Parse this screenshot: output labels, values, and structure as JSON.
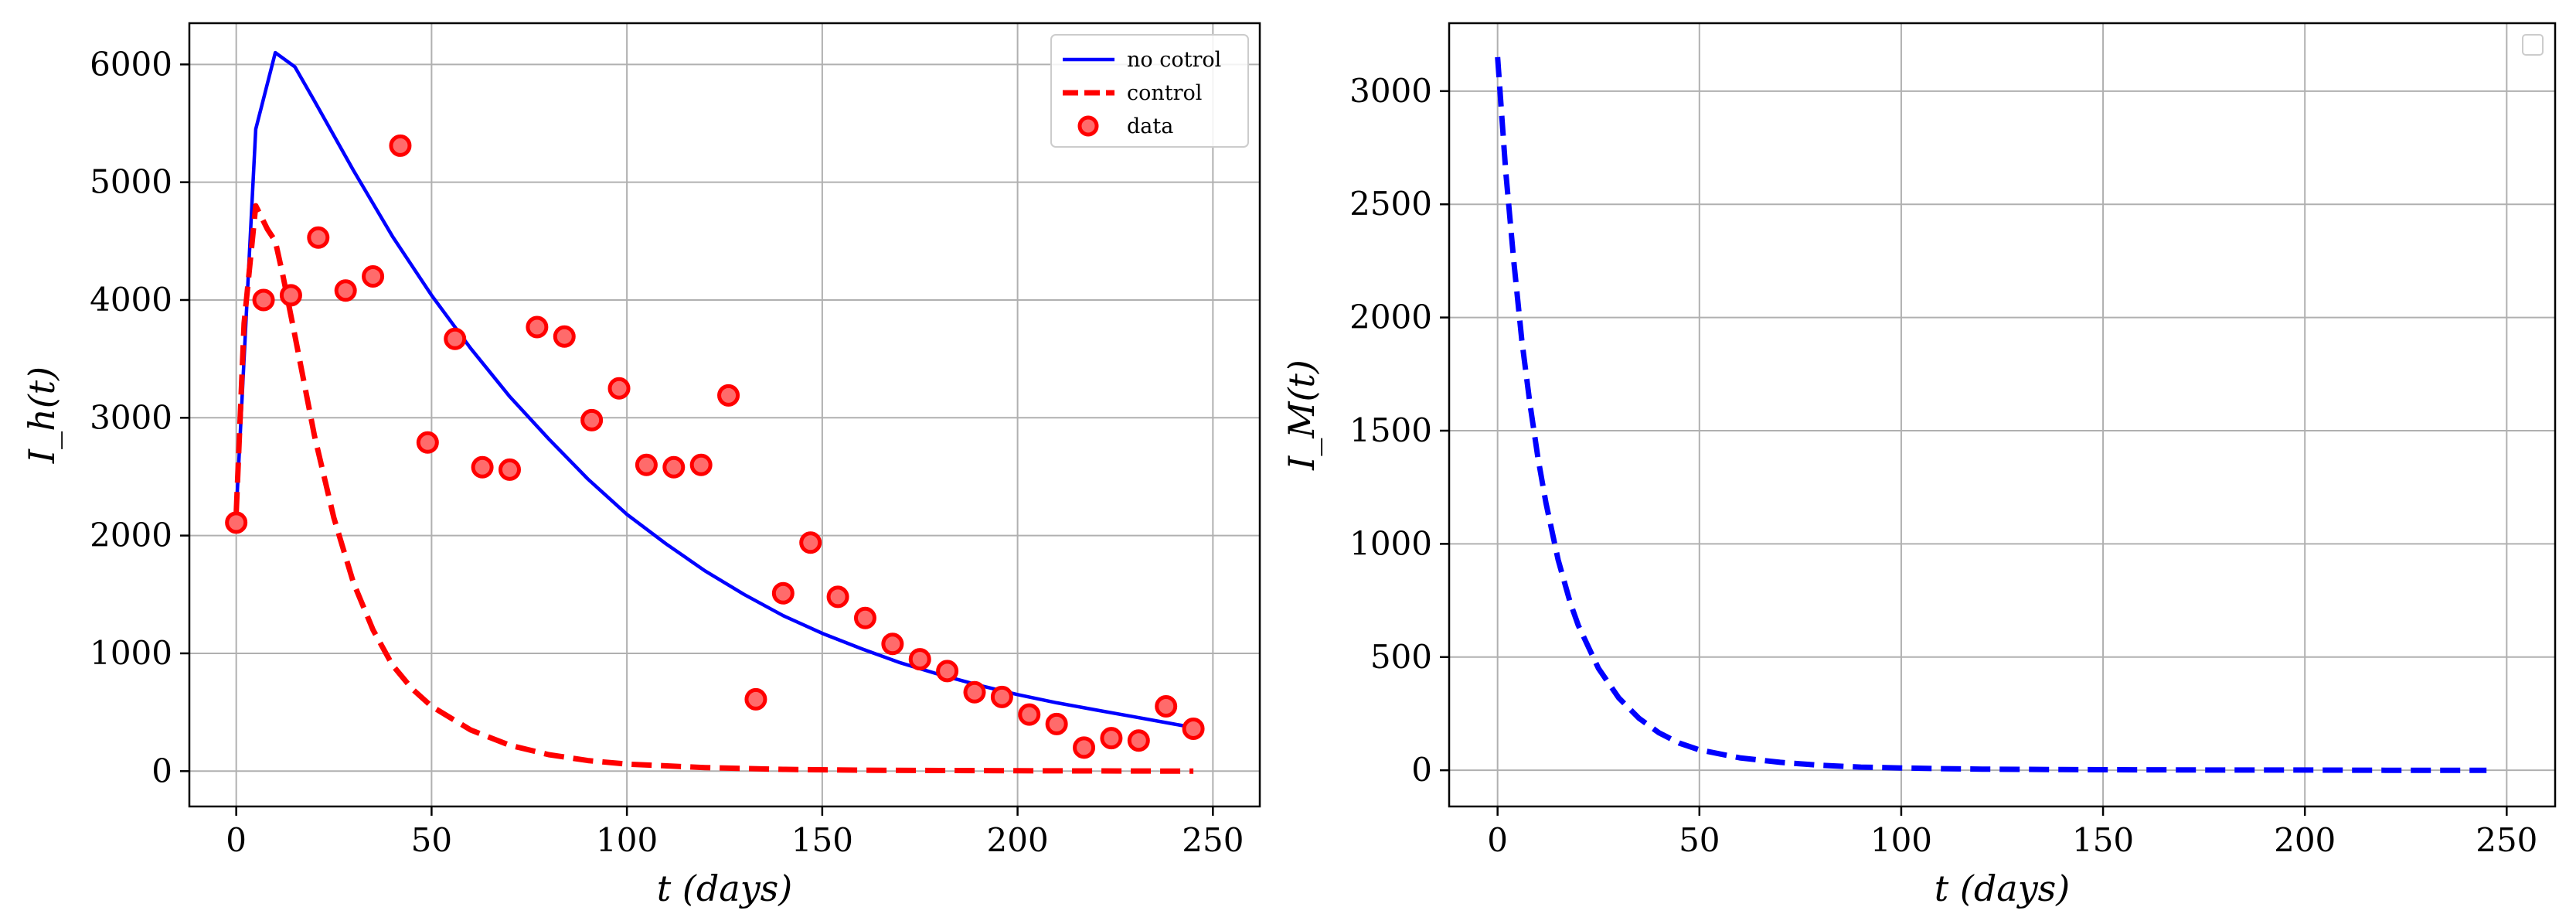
{
  "chart_data": [
    {
      "type": "line",
      "panel": "left",
      "title": "",
      "xlabel": "t (days)",
      "ylabel": "I_h(t)",
      "xlim": [
        -12,
        262
      ],
      "ylim": [
        -300,
        6350
      ],
      "xticks": [
        0,
        50,
        100,
        150,
        200,
        250
      ],
      "yticks": [
        0,
        1000,
        2000,
        3000,
        4000,
        5000,
        6000
      ],
      "grid": true,
      "legend_position": "top-right",
      "legend": [
        "no cotrol",
        "control",
        "data"
      ],
      "series": [
        {
          "name": "no cotrol",
          "style": "solid",
          "color": "#0000ff",
          "x": [
            0,
            5,
            10,
            15,
            20,
            30,
            40,
            50,
            60,
            70,
            80,
            90,
            100,
            110,
            120,
            130,
            140,
            150,
            160,
            170,
            180,
            190,
            200,
            210,
            220,
            230,
            240,
            245
          ],
          "y": [
            2200,
            5450,
            6100,
            5980,
            5690,
            5100,
            4540,
            4040,
            3590,
            3180,
            2820,
            2480,
            2180,
            1930,
            1700,
            1500,
            1320,
            1170,
            1040,
            920,
            820,
            730,
            650,
            580,
            520,
            460,
            400,
            370
          ]
        },
        {
          "name": "control",
          "style": "dashed",
          "color": "#ff0000",
          "x": [
            0,
            2,
            5,
            8,
            10,
            12,
            15,
            20,
            25,
            30,
            35,
            40,
            45,
            50,
            60,
            70,
            80,
            90,
            100,
            120,
            140,
            160,
            180,
            200,
            220,
            245
          ],
          "y": [
            2200,
            3800,
            4800,
            4600,
            4500,
            4200,
            3700,
            2850,
            2150,
            1600,
            1200,
            900,
            700,
            550,
            350,
            220,
            140,
            90,
            60,
            30,
            15,
            8,
            5,
            3,
            2,
            0
          ]
        },
        {
          "name": "data",
          "style": "markers",
          "color": "#ff0000",
          "x": [
            0,
            7,
            14,
            21,
            28,
            35,
            42,
            49,
            56,
            63,
            70,
            77,
            84,
            91,
            98,
            105,
            112,
            119,
            126,
            133,
            140,
            147,
            154,
            161,
            168,
            175,
            182,
            189,
            196,
            203,
            210,
            217,
            224,
            231,
            238,
            245
          ],
          "y": [
            2110,
            4000,
            4040,
            4530,
            4080,
            4200,
            5310,
            2790,
            3670,
            2580,
            2560,
            3770,
            3690,
            2980,
            3250,
            2600,
            2580,
            2600,
            3190,
            610,
            1510,
            1940,
            1480,
            1300,
            1080,
            950,
            850,
            670,
            630,
            480,
            400,
            200,
            280,
            260,
            550,
            360
          ]
        }
      ]
    },
    {
      "type": "line",
      "panel": "right",
      "title": "",
      "xlabel": "t (days)",
      "ylabel": "I_M(t)",
      "xlim": [
        -12,
        262
      ],
      "ylim": [
        -160,
        3300
      ],
      "xticks": [
        0,
        50,
        100,
        150,
        200,
        250
      ],
      "yticks": [
        0,
        500,
        1000,
        1500,
        2000,
        2500,
        3000
      ],
      "grid": true,
      "legend_position": "top-right",
      "series": [
        {
          "name": "I_M",
          "style": "dashed",
          "color": "#0000ff",
          "x": [
            0,
            2,
            4,
            6,
            8,
            10,
            12,
            15,
            18,
            20,
            25,
            30,
            35,
            40,
            45,
            50,
            60,
            70,
            80,
            90,
            100,
            110,
            120,
            140,
            160,
            180,
            200,
            220,
            245
          ],
          "y": [
            3150,
            2650,
            2250,
            1900,
            1620,
            1380,
            1180,
            930,
            740,
            640,
            450,
            320,
            230,
            165,
            120,
            90,
            55,
            35,
            22,
            14,
            10,
            7,
            5,
            3,
            2,
            1,
            1,
            0,
            0
          ]
        }
      ]
    }
  ]
}
